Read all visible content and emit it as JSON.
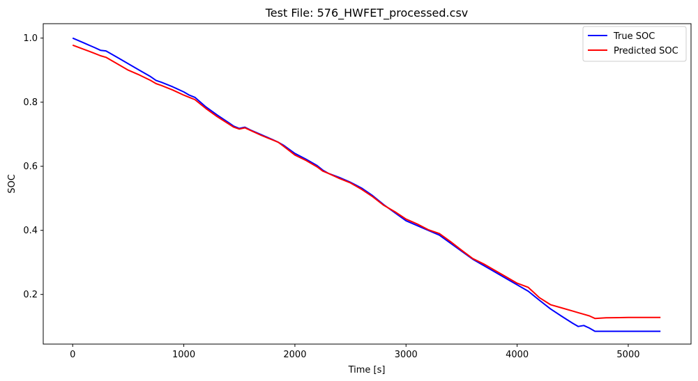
{
  "chart_data": {
    "type": "line",
    "title": "Test File: 576_HWFET_processed.csv",
    "xlabel": "Time [s]",
    "ylabel": "SOC",
    "xlim": [
      -265,
      5565
    ],
    "ylim": [
      0.045,
      1.045
    ],
    "xticks": [
      0,
      1000,
      2000,
      3000,
      4000,
      5000
    ],
    "xtick_labels": [
      "0",
      "1000",
      "2000",
      "3000",
      "4000",
      "5000"
    ],
    "yticks": [
      0.2,
      0.4,
      0.6,
      0.8,
      1.0
    ],
    "ytick_labels": [
      "0.2",
      "0.4",
      "0.6",
      "0.8",
      "1.0"
    ],
    "grid": false,
    "legend_position": "top-right",
    "series": [
      {
        "name": "True SOC",
        "color": "#0000ff",
        "x": [
          0,
          100,
          200,
          250,
          300,
          400,
          500,
          600,
          700,
          750,
          800,
          900,
          1000,
          1050,
          1100,
          1200,
          1300,
          1400,
          1450,
          1500,
          1550,
          1600,
          1700,
          1800,
          1850,
          1900,
          2000,
          2100,
          2200,
          2250,
          2300,
          2400,
          2500,
          2600,
          2700,
          2800,
          2900,
          3000,
          3100,
          3200,
          3300,
          3400,
          3500,
          3600,
          3700,
          3800,
          3900,
          4000,
          4100,
          4200,
          4300,
          4400,
          4500,
          4550,
          4600,
          4650,
          4700,
          4800,
          5000,
          5200,
          5290
        ],
        "y": [
          1.0,
          0.985,
          0.97,
          0.962,
          0.96,
          0.94,
          0.92,
          0.9,
          0.88,
          0.868,
          0.862,
          0.848,
          0.832,
          0.822,
          0.815,
          0.785,
          0.76,
          0.737,
          0.725,
          0.718,
          0.722,
          0.713,
          0.698,
          0.683,
          0.675,
          0.665,
          0.64,
          0.622,
          0.602,
          0.588,
          0.578,
          0.565,
          0.55,
          0.532,
          0.508,
          0.48,
          0.455,
          0.43,
          0.415,
          0.4,
          0.385,
          0.36,
          0.335,
          0.31,
          0.29,
          0.27,
          0.25,
          0.23,
          0.21,
          0.182,
          0.155,
          0.132,
          0.11,
          0.1,
          0.103,
          0.095,
          0.085,
          0.085,
          0.085,
          0.085,
          0.085
        ]
      },
      {
        "name": "Predicted SOC",
        "color": "#ff0000",
        "x": [
          0,
          100,
          200,
          250,
          300,
          400,
          500,
          600,
          700,
          750,
          800,
          900,
          1000,
          1050,
          1100,
          1200,
          1300,
          1400,
          1450,
          1500,
          1550,
          1600,
          1700,
          1800,
          1850,
          1900,
          2000,
          2100,
          2200,
          2250,
          2300,
          2400,
          2500,
          2600,
          2700,
          2800,
          2900,
          3000,
          3100,
          3200,
          3300,
          3400,
          3500,
          3600,
          3700,
          3800,
          3900,
          4000,
          4100,
          4200,
          4300,
          4400,
          4500,
          4550,
          4600,
          4650,
          4700,
          4800,
          5000,
          5200,
          5290
        ],
        "y": [
          0.978,
          0.965,
          0.952,
          0.945,
          0.94,
          0.92,
          0.9,
          0.885,
          0.868,
          0.858,
          0.852,
          0.838,
          0.822,
          0.815,
          0.808,
          0.78,
          0.755,
          0.733,
          0.722,
          0.716,
          0.72,
          0.712,
          0.696,
          0.682,
          0.675,
          0.662,
          0.635,
          0.618,
          0.598,
          0.585,
          0.578,
          0.562,
          0.548,
          0.528,
          0.505,
          0.478,
          0.458,
          0.435,
          0.42,
          0.402,
          0.39,
          0.365,
          0.338,
          0.312,
          0.295,
          0.275,
          0.255,
          0.235,
          0.222,
          0.19,
          0.168,
          0.158,
          0.148,
          0.143,
          0.138,
          0.133,
          0.125,
          0.127,
          0.128,
          0.128,
          0.128
        ]
      }
    ]
  }
}
